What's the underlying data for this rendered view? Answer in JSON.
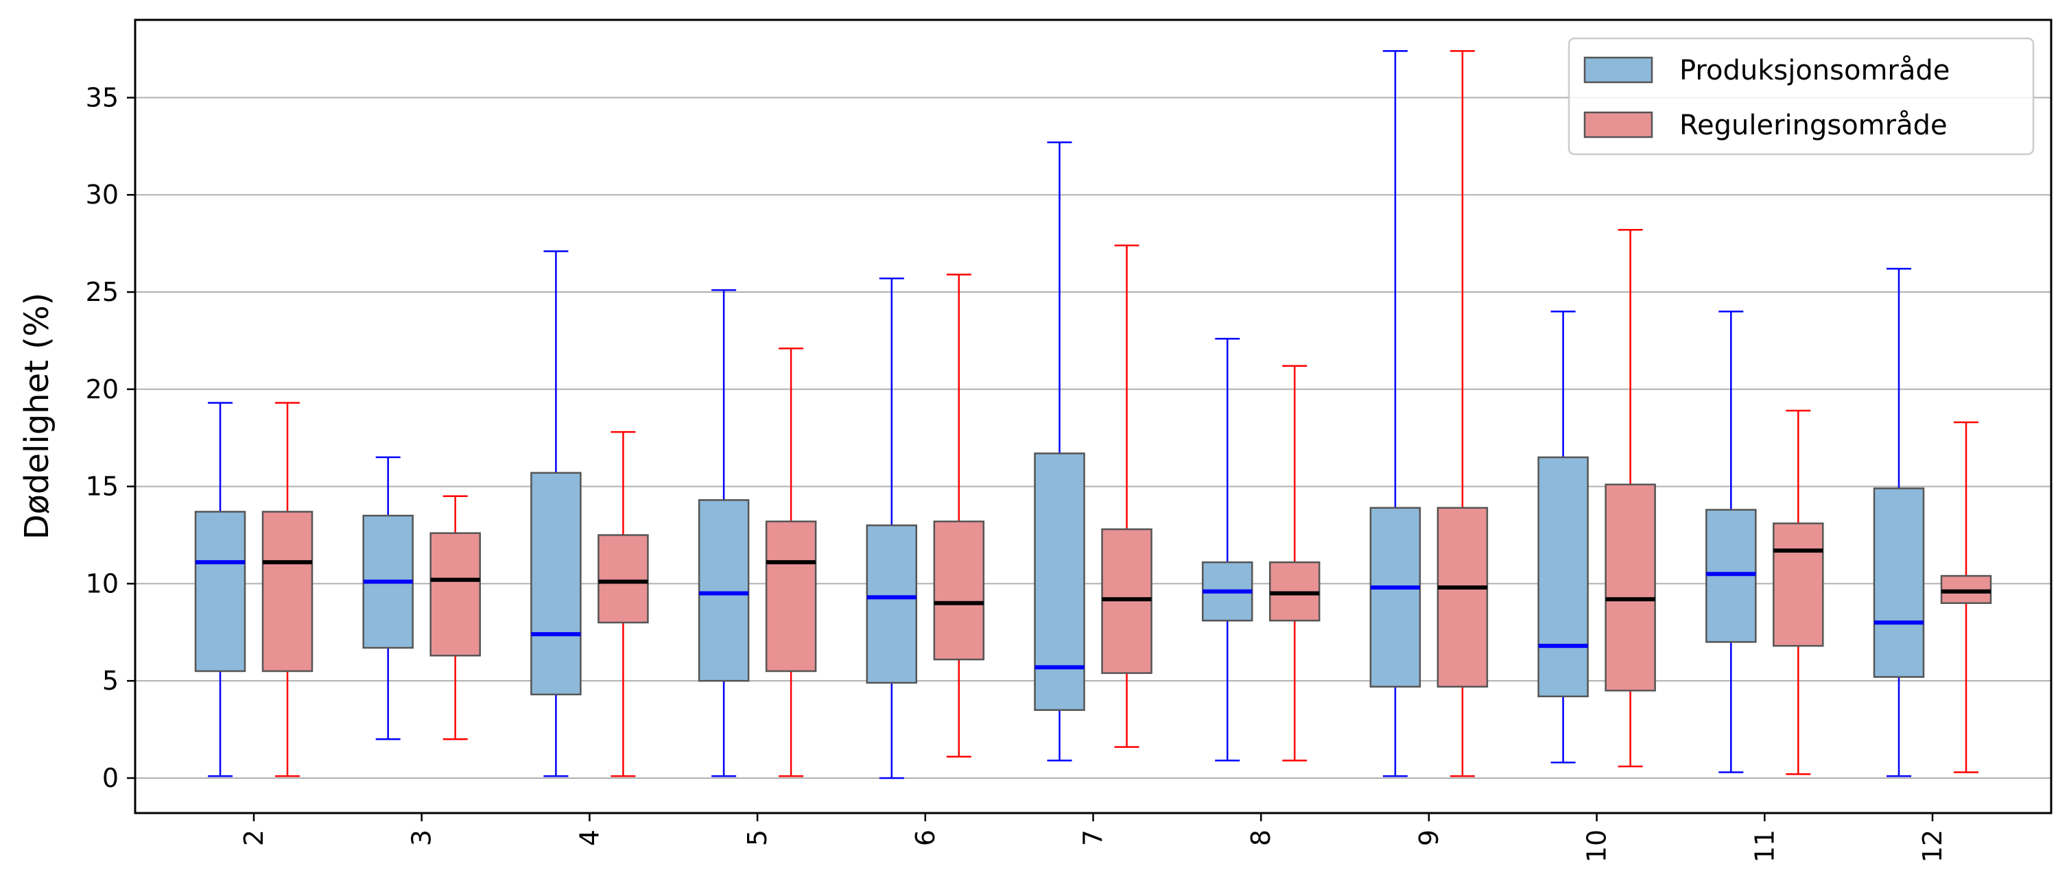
{
  "chart_data": {
    "type": "box",
    "title": "",
    "xlabel": "",
    "ylabel": "Dødelighet (%)",
    "ylim": [
      -1.8,
      39
    ],
    "yticks": [
      0,
      5,
      10,
      15,
      20,
      25,
      30,
      35
    ],
    "categories": [
      "2",
      "3",
      "4",
      "5",
      "6",
      "7",
      "8",
      "9",
      "10",
      "11",
      "12"
    ],
    "grid": "horizontal",
    "legend_position": "top-right",
    "series": [
      {
        "name": "Produksjonsområde",
        "box_color": "#8db9da",
        "line_color": "#0000ff",
        "boxes": [
          {
            "whislo": 0.1,
            "q1": 5.5,
            "med": 11.1,
            "q3": 13.7,
            "whishi": 19.3
          },
          {
            "whislo": 2.0,
            "q1": 6.7,
            "med": 10.1,
            "q3": 13.5,
            "whishi": 16.5
          },
          {
            "whislo": 0.1,
            "q1": 4.3,
            "med": 7.4,
            "q3": 15.7,
            "whishi": 27.1
          },
          {
            "whislo": 0.1,
            "q1": 5.0,
            "med": 9.5,
            "q3": 14.3,
            "whishi": 25.1
          },
          {
            "whislo": 0.0,
            "q1": 4.9,
            "med": 9.3,
            "q3": 13.0,
            "whishi": 25.7
          },
          {
            "whislo": 0.9,
            "q1": 3.5,
            "med": 5.7,
            "q3": 16.7,
            "whishi": 32.7
          },
          {
            "whislo": 0.9,
            "q1": 8.1,
            "med": 9.6,
            "q3": 11.1,
            "whishi": 22.6
          },
          {
            "whislo": 0.1,
            "q1": 4.7,
            "med": 9.8,
            "q3": 13.9,
            "whishi": 37.4
          },
          {
            "whislo": 0.8,
            "q1": 4.2,
            "med": 6.8,
            "q3": 16.5,
            "whishi": 24.0
          },
          {
            "whislo": 0.3,
            "q1": 7.0,
            "med": 10.5,
            "q3": 13.8,
            "whishi": 24.0
          },
          {
            "whislo": 0.1,
            "q1": 5.2,
            "med": 8.0,
            "q3": 14.9,
            "whishi": 26.2
          }
        ]
      },
      {
        "name": "Reguleringsområde",
        "box_color": "#e89294",
        "line_color": "#ff0000",
        "boxes": [
          {
            "whislo": 0.1,
            "q1": 5.5,
            "med": 11.1,
            "q3": 13.7,
            "whishi": 19.3
          },
          {
            "whislo": 2.0,
            "q1": 6.3,
            "med": 10.2,
            "q3": 12.6,
            "whishi": 14.5
          },
          {
            "whislo": 0.1,
            "q1": 8.0,
            "med": 10.1,
            "q3": 12.5,
            "whishi": 17.8
          },
          {
            "whislo": 0.1,
            "q1": 5.5,
            "med": 11.1,
            "q3": 13.2,
            "whishi": 22.1
          },
          {
            "whislo": 1.1,
            "q1": 6.1,
            "med": 9.0,
            "q3": 13.2,
            "whishi": 25.9
          },
          {
            "whislo": 1.6,
            "q1": 5.4,
            "med": 9.2,
            "q3": 12.8,
            "whishi": 27.4
          },
          {
            "whislo": 0.9,
            "q1": 8.1,
            "med": 9.5,
            "q3": 11.1,
            "whishi": 21.2
          },
          {
            "whislo": 0.1,
            "q1": 4.7,
            "med": 9.8,
            "q3": 13.9,
            "whishi": 37.4
          },
          {
            "whislo": 0.6,
            "q1": 4.5,
            "med": 9.2,
            "q3": 15.1,
            "whishi": 28.2
          },
          {
            "whislo": 0.2,
            "q1": 6.8,
            "med": 11.7,
            "q3": 13.1,
            "whishi": 18.9
          },
          {
            "whislo": 0.3,
            "q1": 9.0,
            "med": 9.6,
            "q3": 10.4,
            "whishi": 18.3
          }
        ]
      }
    ]
  }
}
